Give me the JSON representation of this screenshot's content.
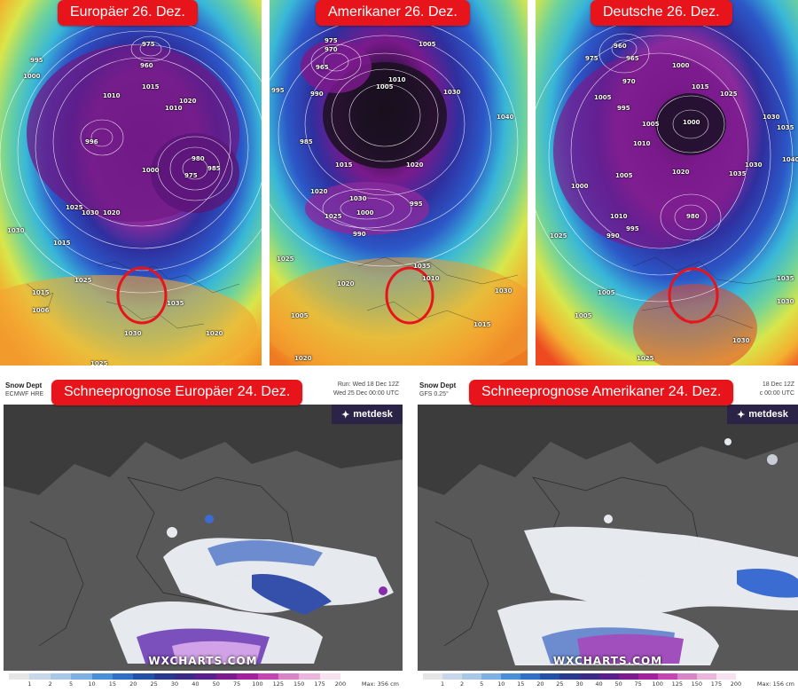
{
  "panels_top": [
    {
      "label": "Europäer 26. Dez.",
      "isobars": [
        "975",
        "970",
        "960",
        "995",
        "1000",
        "990",
        "1000",
        "1010",
        "1015",
        "1020",
        "1010",
        "1010",
        "1020",
        "996",
        "990",
        "985",
        "980",
        "985",
        "975",
        "1000",
        "1025",
        "1030",
        "1020",
        "1015",
        "1010",
        "1030",
        "1025",
        "1015",
        "1006",
        "1030",
        "1035",
        "1030",
        "1020",
        "1025"
      ]
    },
    {
      "label": "Amerikaner 26. Dez.",
      "isobars": [
        "975",
        "970",
        "965",
        "1005",
        "1010",
        "995",
        "990",
        "980",
        "1005",
        "1030",
        "1040",
        "985",
        "1015",
        "1020",
        "1020",
        "1030",
        "1025",
        "1000",
        "995",
        "990",
        "1035",
        "1010",
        "1025",
        "1020",
        "1005",
        "1030",
        "1015",
        "1020"
      ]
    },
    {
      "label": "Deutsche 26. Dez.",
      "isobars": [
        "960",
        "965",
        "975",
        "1000",
        "970",
        "990",
        "1005",
        "995",
        "1005",
        "1010",
        "1000",
        "1015",
        "1025",
        "1030",
        "1035",
        "1040",
        "1020",
        "1030",
        "1035",
        "1005",
        "1010",
        "995",
        "990",
        "980",
        "1000",
        "1025",
        "1005",
        "1005",
        "1030",
        "1035",
        "1030",
        "1025"
      ]
    }
  ],
  "panels_snow": [
    {
      "label": "Schneeprognose  Europäer 24. Dez.",
      "header_title": "Snow Dept",
      "header_model": "ECMWF HRE",
      "run": "Run: Wed 18 Dec 12Z",
      "valid": "Wed 25 Dec 00:00 UTC",
      "max": "Max: 356 cm"
    },
    {
      "label": "Schneeprognose Amerikaner 24. Dez.",
      "header_title": "Snow Dept",
      "header_model": "GFS 0.25°",
      "run": "18 Dec 12Z",
      "valid": "c 00:00 UTC",
      "max": "Max: 156 cm"
    }
  ],
  "brand": "metdesk",
  "watermark": "WXCHARTS.COM",
  "legend_ticks": [
    "1",
    "2",
    "5",
    "10",
    "15",
    "20",
    "25",
    "30",
    "40",
    "50",
    "75",
    "100",
    "125",
    "150",
    "175",
    "200"
  ],
  "legend_colors": [
    "#e6e6e6",
    "#c8d8ea",
    "#a9c8e8",
    "#7fb0e2",
    "#4b8fd6",
    "#2f6fc5",
    "#2451a8",
    "#283a8e",
    "#3b2a86",
    "#5a1f8c",
    "#7d1b8e",
    "#a1229c",
    "#c545b2",
    "#d884c7",
    "#eab6dc",
    "#f7e1f0"
  ]
}
